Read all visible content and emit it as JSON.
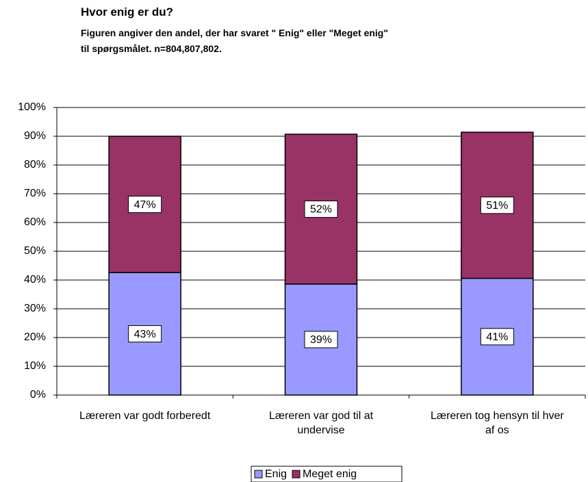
{
  "chart_data": {
    "type": "stacked_bar",
    "title": "Hvor enig er du?",
    "subtitle": [
      "Figuren angiver den andel, der har svaret \" Enig\" eller \"Meget enig\"",
      "til spørgsmålet. n=804,807,802."
    ],
    "categories": [
      "Læreren var godt forberedt",
      "Læreren var god til at undervise",
      "Læreren tog hensyn til hver af os"
    ],
    "series": [
      {
        "name": "Enig",
        "color": "#9999ff",
        "values": [
          42.6,
          38.6,
          40.6
        ],
        "value_labels": [
          "43%",
          "39%",
          "41%"
        ]
      },
      {
        "name": "Meget enig",
        "color": "#993366",
        "values": [
          47.4,
          52.1,
          50.8
        ],
        "value_labels": [
          "47%",
          "52%",
          "51%"
        ]
      }
    ],
    "ylim": [
      0,
      100
    ],
    "yticks": [
      {
        "value": 0,
        "label": "0%"
      },
      {
        "value": 10,
        "label": "10%"
      },
      {
        "value": 20,
        "label": "20%"
      },
      {
        "value": 30,
        "label": "30%"
      },
      {
        "value": 40,
        "label": "40%"
      },
      {
        "value": 50,
        "label": "50%"
      },
      {
        "value": 60,
        "label": "60%"
      },
      {
        "value": 70,
        "label": "70%"
      },
      {
        "value": 80,
        "label": "80%"
      },
      {
        "value": 90,
        "label": "90%"
      },
      {
        "value": 100,
        "label": "100%"
      }
    ],
    "grid": true,
    "legend": "bottom"
  }
}
